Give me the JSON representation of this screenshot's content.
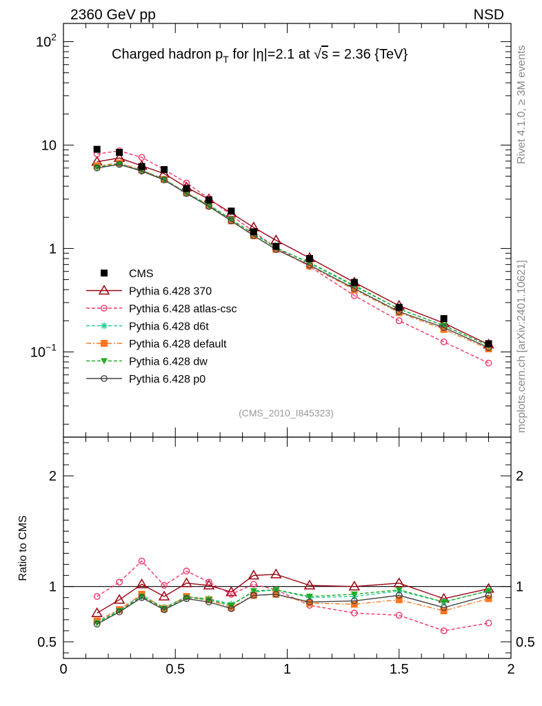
{
  "header": {
    "left": "2360 GeV pp",
    "right": "NSD"
  },
  "side_labels": {
    "rivet": "Rivet 4.1.0, ≥ 3M events",
    "mcplots": "mcplots.cern.ch [arXiv:2401.10621]"
  },
  "colors": {
    "cms": "#000000",
    "p370": "#990011",
    "atlas": "#ee3366",
    "d6t": "#22cc99",
    "default": "#ff7722",
    "dw": "#22aa22",
    "p0": "#444444"
  },
  "chart_data": [
    {
      "type": "line",
      "panel": "main",
      "title": "Charged hadron p_T for |η|=2.1 at √s = 2.36 {TeV}",
      "title_parts": {
        "pre": "Charged hadron p",
        "sub": "T",
        "mid": " for |η|=2.1 at ",
        "sqrt": "√",
        "s": "s",
        "post": " = 2.36 {TeV}"
      },
      "analysis_label": "(CMS_2010_I845323)",
      "yscale": "log",
      "xlim": [
        0,
        2
      ],
      "ylim": [
        0.015,
        150
      ],
      "ytick_labels": [
        {
          "value": 100,
          "base": "10",
          "exp": "2"
        },
        {
          "value": 10,
          "base": "10",
          "exp": ""
        },
        {
          "value": 1,
          "base": "1",
          "exp": ""
        },
        {
          "value": 0.1,
          "base": "10",
          "exp": "−1"
        }
      ],
      "legend_position": "middle-left",
      "x": [
        0.15,
        0.25,
        0.35,
        0.45,
        0.55,
        0.65,
        0.75,
        0.85,
        0.95,
        1.1,
        1.3,
        1.5,
        1.7,
        1.9
      ],
      "series": [
        {
          "key": "cms",
          "name": "CMS",
          "marker": "square-filled",
          "line": "none",
          "values": [
            9.1,
            8.5,
            6.2,
            5.8,
            3.8,
            2.95,
            2.3,
            1.45,
            1.05,
            0.8,
            0.47,
            0.27,
            0.21,
            0.12
          ]
        },
        {
          "key": "p370",
          "name": "Pythia 6.428 370",
          "marker": "triangle-open",
          "line": "solid",
          "values": [
            6.9,
            7.5,
            6.3,
            5.3,
            3.9,
            3.0,
            2.2,
            1.6,
            1.2,
            0.81,
            0.47,
            0.28,
            0.19,
            0.118
          ]
        },
        {
          "key": "atlas",
          "name": "Pythia 6.428 atlas-csc",
          "marker": "circle-open",
          "line": "dashed",
          "values": [
            8.2,
            8.8,
            7.6,
            5.8,
            4.3,
            3.05,
            2.1,
            1.45,
            1.02,
            0.67,
            0.35,
            0.2,
            0.125,
            0.078
          ]
        },
        {
          "key": "d6t",
          "name": "Pythia 6.428 d6t",
          "marker": "asterisk",
          "line": "dashed",
          "values": [
            6.2,
            6.6,
            5.7,
            4.7,
            3.45,
            2.65,
            1.92,
            1.38,
            1.02,
            0.72,
            0.43,
            0.26,
            0.18,
            0.115
          ]
        },
        {
          "key": "default",
          "name": "Pythia 6.428 default",
          "marker": "square-filled",
          "line": "dashdot",
          "values": [
            6.3,
            6.7,
            5.75,
            4.65,
            3.45,
            2.6,
            1.85,
            1.33,
            0.98,
            0.68,
            0.4,
            0.24,
            0.165,
            0.107
          ]
        },
        {
          "key": "dw",
          "name": "Pythia 6.428 dw",
          "marker": "triangle-down-filled",
          "line": "dashed",
          "values": [
            6.1,
            6.55,
            5.65,
            4.65,
            3.42,
            2.62,
            1.9,
            1.39,
            1.02,
            0.73,
            0.44,
            0.26,
            0.18,
            0.115
          ]
        },
        {
          "key": "p0",
          "name": "Pythia 6.428 p0",
          "marker": "circle-open",
          "line": "solid",
          "values": [
            6.0,
            6.5,
            5.6,
            4.6,
            3.4,
            2.55,
            1.85,
            1.33,
            0.98,
            0.69,
            0.41,
            0.245,
            0.172,
            0.11
          ]
        }
      ]
    },
    {
      "type": "line",
      "panel": "ratio",
      "ylabel": "Ratio to CMS",
      "xlim": [
        0,
        2
      ],
      "ylim": [
        0.35,
        2.35
      ],
      "xticks": [
        "0",
        "0.5",
        "1",
        "1.5",
        "2"
      ],
      "xtick_values": [
        0,
        0.5,
        1,
        1.5,
        2
      ],
      "yticks": [
        "0.5",
        "1",
        "2"
      ],
      "ytick_values": [
        0.5,
        1,
        2
      ],
      "reference_line": 1,
      "x": [
        0.15,
        0.25,
        0.35,
        0.45,
        0.55,
        0.65,
        0.75,
        0.85,
        0.95,
        1.1,
        1.3,
        1.5,
        1.7,
        1.9
      ],
      "series": [
        {
          "key": "p370",
          "values": [
            0.76,
            0.88,
            1.02,
            0.91,
            1.03,
            1.01,
            0.95,
            1.1,
            1.11,
            1.01,
            1.0,
            1.03,
            0.89,
            0.98
          ]
        },
        {
          "key": "atlas",
          "values": [
            0.91,
            1.04,
            1.23,
            1.01,
            1.14,
            1.04,
            0.93,
            1.02,
            0.97,
            0.83,
            0.76,
            0.74,
            0.6,
            0.67
          ]
        },
        {
          "key": "d6t",
          "values": [
            0.68,
            0.79,
            0.92,
            0.81,
            0.91,
            0.89,
            0.84,
            0.95,
            0.97,
            0.9,
            0.91,
            0.96,
            0.86,
            0.96
          ]
        },
        {
          "key": "default",
          "values": [
            0.69,
            0.79,
            0.93,
            0.8,
            0.91,
            0.88,
            0.81,
            0.92,
            0.93,
            0.85,
            0.84,
            0.88,
            0.78,
            0.89
          ]
        },
        {
          "key": "dw",
          "values": [
            0.67,
            0.78,
            0.91,
            0.8,
            0.9,
            0.88,
            0.83,
            0.96,
            0.97,
            0.91,
            0.93,
            0.97,
            0.86,
            0.96
          ]
        },
        {
          "key": "p0",
          "values": [
            0.66,
            0.77,
            0.9,
            0.79,
            0.89,
            0.86,
            0.8,
            0.92,
            0.93,
            0.86,
            0.87,
            0.92,
            0.81,
            0.92
          ]
        }
      ]
    }
  ]
}
